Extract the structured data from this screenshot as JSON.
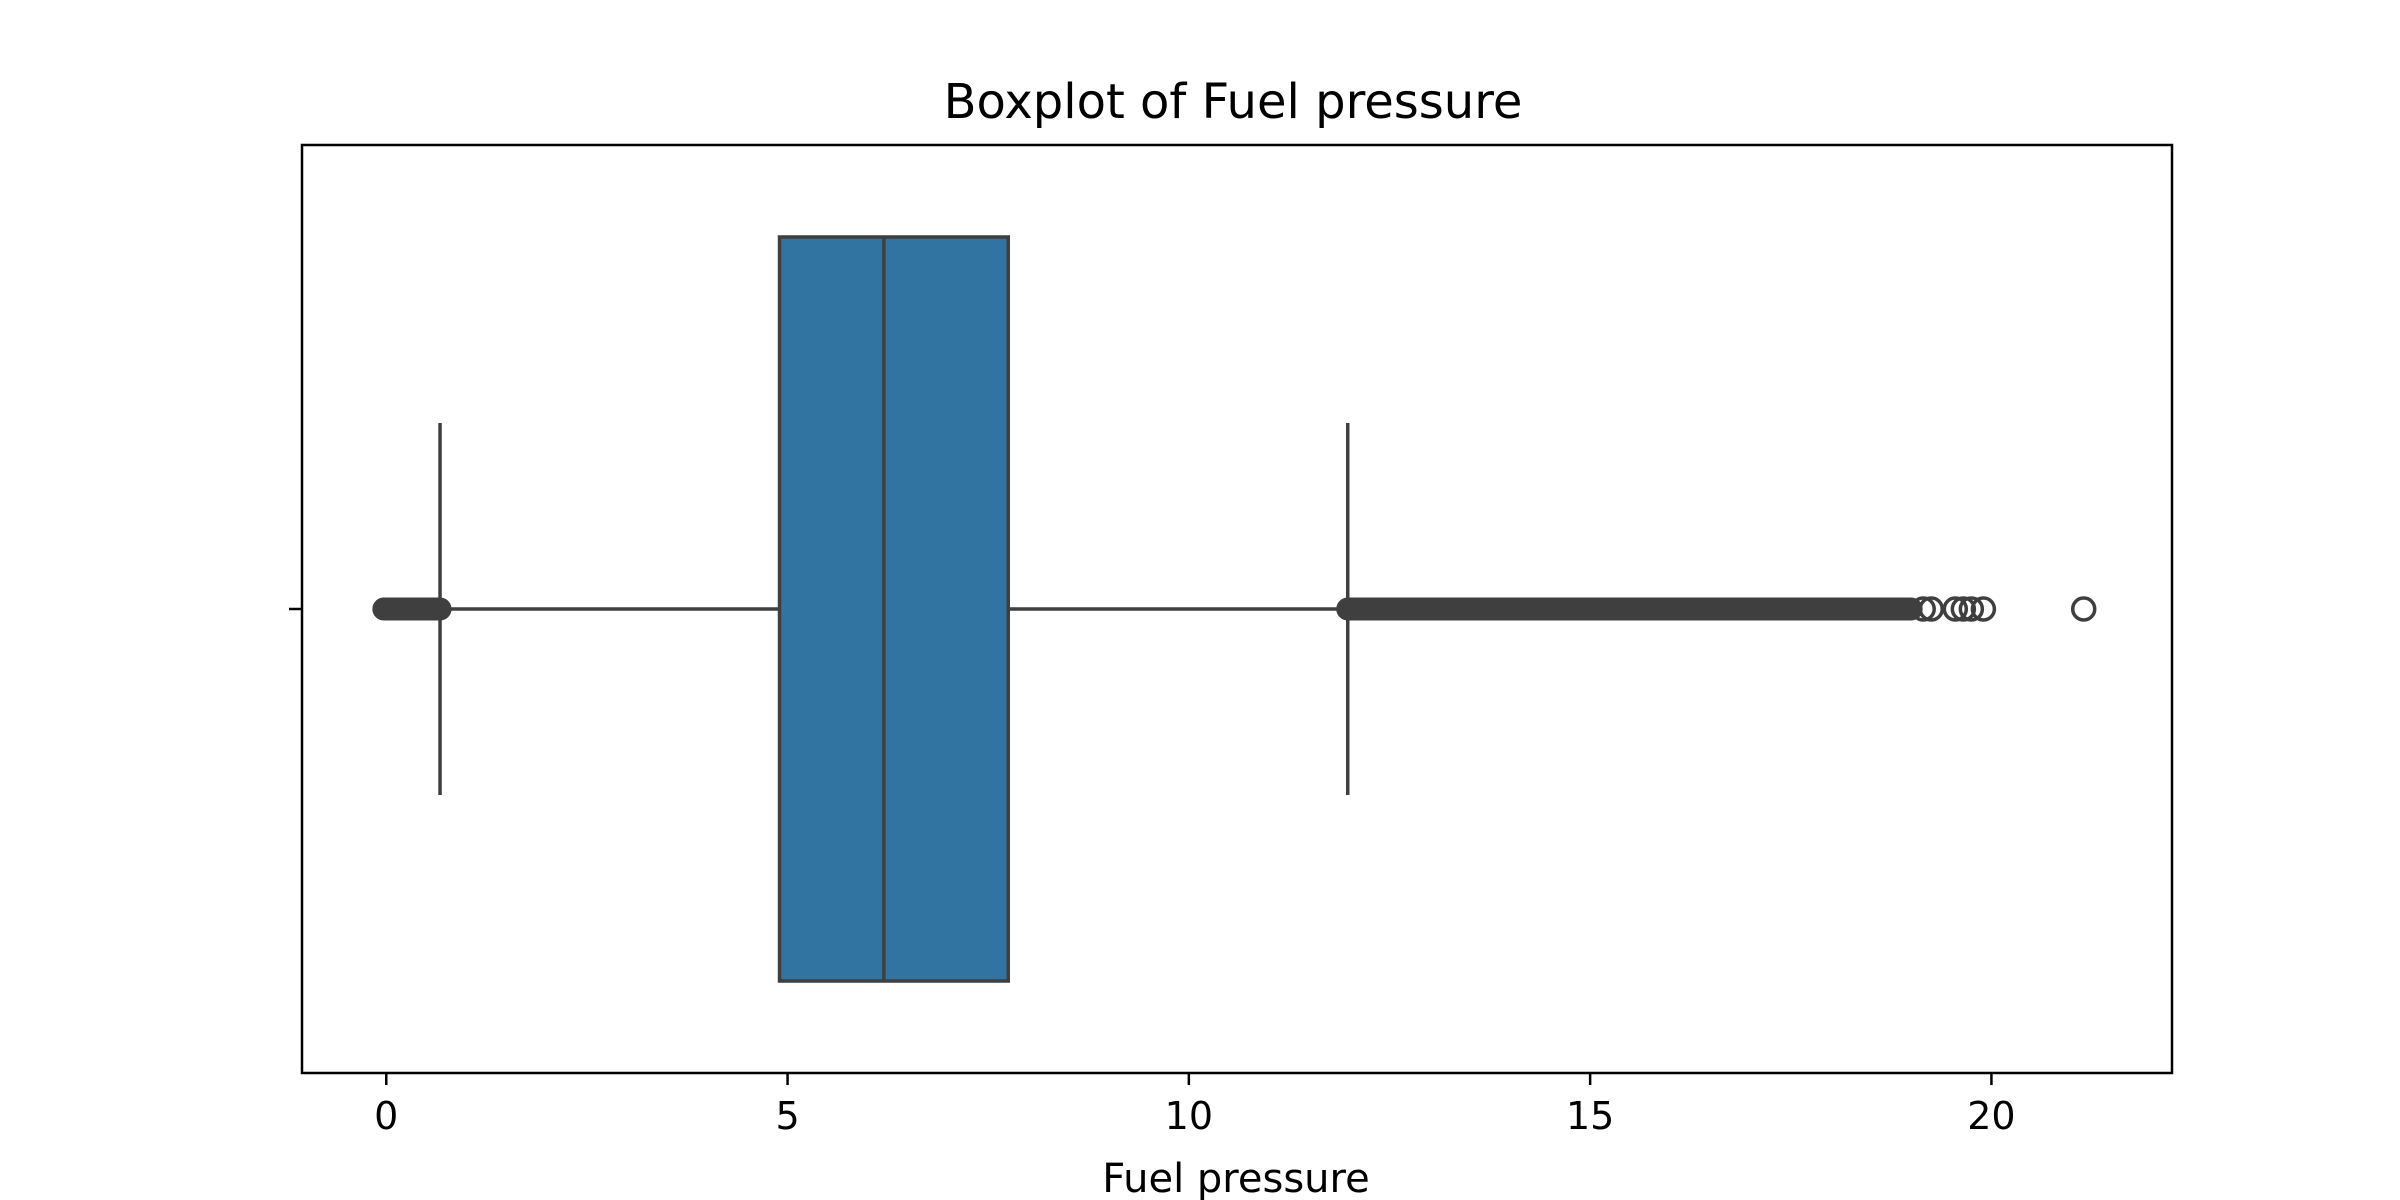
{
  "chart_data": {
    "type": "boxplot",
    "title": "Boxplot of Fuel pressure",
    "xlabel": "Fuel pressure",
    "ylabel": "",
    "xlim": [
      -1.05,
      22.25
    ],
    "xticks": [
      0,
      5,
      10,
      15,
      20
    ],
    "xtick_labels": [
      "0",
      "5",
      "10",
      "15",
      "20"
    ],
    "orientation": "horizontal",
    "grid": false,
    "legend": false,
    "box": {
      "whisker_low": 0.67,
      "q1": 4.9,
      "median": 6.2,
      "q3": 7.75,
      "whisker_high": 11.98
    },
    "outliers_low_range": [
      -0.03,
      0.67
    ],
    "outliers_high_range": [
      11.98,
      19.0
    ],
    "outliers_high_sparse": [
      19.15,
      19.25,
      19.55,
      19.65,
      19.75,
      19.9,
      21.15
    ],
    "colors": {
      "box_fill": "#3274A1",
      "line": "#3F3F3F",
      "frame": "#000000"
    }
  }
}
